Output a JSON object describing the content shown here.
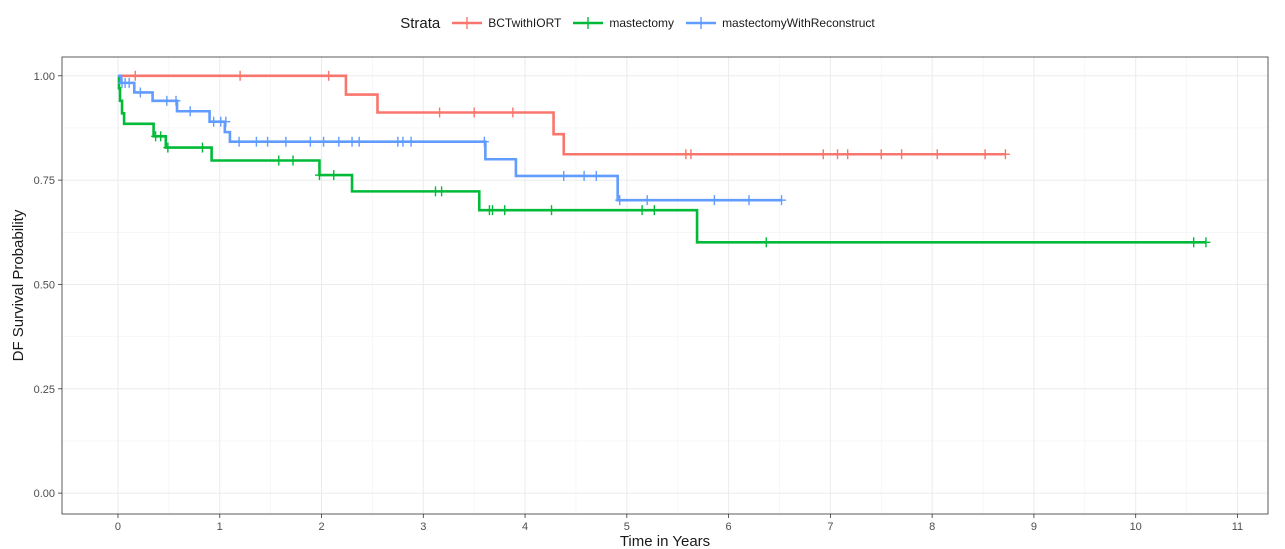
{
  "chart_data": {
    "type": "line",
    "subtype": "kaplan-meier-step",
    "title": "",
    "xlabel": "Time in Years",
    "ylabel": "DF Survival Probability",
    "xlim": [
      -0.55,
      11.3
    ],
    "ylim": [
      -0.05,
      1.045
    ],
    "xticks": [
      0,
      1,
      2,
      3,
      4,
      5,
      6,
      7,
      8,
      9,
      10,
      11
    ],
    "xtick_labels": [
      "0",
      "1",
      "2",
      "3",
      "4",
      "5",
      "6",
      "7",
      "8",
      "9",
      "10",
      "11"
    ],
    "yticks": [
      0,
      0.25,
      0.5,
      0.75,
      1.0
    ],
    "ytick_labels": [
      "0.00",
      "0.25",
      "0.50",
      "0.75",
      "1.00"
    ],
    "grid": true,
    "legend": {
      "title": "Strata",
      "position": "top"
    },
    "series": [
      {
        "name": "BCTwithIORT",
        "color": "#F8766D",
        "steps": [
          [
            0,
            1.0
          ],
          [
            2.24,
            0.955
          ],
          [
            2.55,
            0.912
          ],
          [
            4.28,
            0.86
          ],
          [
            4.38,
            0.812
          ],
          [
            8.72,
            0.812
          ]
        ],
        "censored": [
          [
            0.17,
            1.0
          ],
          [
            1.2,
            1.0
          ],
          [
            2.07,
            1.0
          ],
          [
            3.16,
            0.912
          ],
          [
            3.5,
            0.912
          ],
          [
            3.88,
            0.912
          ],
          [
            5.58,
            0.812
          ],
          [
            5.63,
            0.812
          ],
          [
            6.93,
            0.812
          ],
          [
            7.07,
            0.812
          ],
          [
            7.17,
            0.812
          ],
          [
            7.5,
            0.812
          ],
          [
            7.7,
            0.812
          ],
          [
            8.05,
            0.812
          ],
          [
            8.52,
            0.812
          ],
          [
            8.72,
            0.812
          ]
        ]
      },
      {
        "name": "mastectomy",
        "color": "#00BA38",
        "steps": [
          [
            0,
            1.0
          ],
          [
            0.01,
            0.97
          ],
          [
            0.02,
            0.94
          ],
          [
            0.04,
            0.91
          ],
          [
            0.06,
            0.885
          ],
          [
            0.35,
            0.855
          ],
          [
            0.47,
            0.828
          ],
          [
            0.92,
            0.797
          ],
          [
            1.98,
            0.762
          ],
          [
            2.3,
            0.723
          ],
          [
            3.55,
            0.678
          ],
          [
            5.69,
            0.601
          ],
          [
            10.69,
            0.601
          ]
        ],
        "censored": [
          [
            0.37,
            0.855
          ],
          [
            0.42,
            0.855
          ],
          [
            0.49,
            0.828
          ],
          [
            0.83,
            0.828
          ],
          [
            1.58,
            0.797
          ],
          [
            1.72,
            0.797
          ],
          [
            1.98,
            0.762
          ],
          [
            2.12,
            0.762
          ],
          [
            3.12,
            0.723
          ],
          [
            3.18,
            0.723
          ],
          [
            3.65,
            0.678
          ],
          [
            3.68,
            0.678
          ],
          [
            3.8,
            0.678
          ],
          [
            4.26,
            0.678
          ],
          [
            5.15,
            0.678
          ],
          [
            5.27,
            0.678
          ],
          [
            6.37,
            0.601
          ],
          [
            10.57,
            0.601
          ],
          [
            10.69,
            0.601
          ]
        ]
      },
      {
        "name": "mastectomyWithReconstruct",
        "color": "#619CFF",
        "steps": [
          [
            0,
            1.0
          ],
          [
            0.03,
            0.983
          ],
          [
            0.16,
            0.96
          ],
          [
            0.34,
            0.94
          ],
          [
            0.58,
            0.915
          ],
          [
            0.9,
            0.89
          ],
          [
            1.05,
            0.865
          ],
          [
            1.1,
            0.842
          ],
          [
            3.61,
            0.8
          ],
          [
            3.91,
            0.76
          ],
          [
            4.91,
            0.702
          ],
          [
            6.52,
            0.702
          ]
        ],
        "censored": [
          [
            0.04,
            0.983
          ],
          [
            0.07,
            0.983
          ],
          [
            0.11,
            0.983
          ],
          [
            0.22,
            0.96
          ],
          [
            0.48,
            0.94
          ],
          [
            0.57,
            0.94
          ],
          [
            0.71,
            0.915
          ],
          [
            0.94,
            0.89
          ],
          [
            1.01,
            0.89
          ],
          [
            1.06,
            0.89
          ],
          [
            1.19,
            0.842
          ],
          [
            1.36,
            0.842
          ],
          [
            1.47,
            0.842
          ],
          [
            1.65,
            0.842
          ],
          [
            1.89,
            0.842
          ],
          [
            2.02,
            0.842
          ],
          [
            2.17,
            0.842
          ],
          [
            2.3,
            0.842
          ],
          [
            2.37,
            0.842
          ],
          [
            2.75,
            0.842
          ],
          [
            2.8,
            0.842
          ],
          [
            2.88,
            0.842
          ],
          [
            3.6,
            0.842
          ],
          [
            4.38,
            0.76
          ],
          [
            4.58,
            0.76
          ],
          [
            4.7,
            0.76
          ],
          [
            4.93,
            0.702
          ],
          [
            5.2,
            0.702
          ],
          [
            5.86,
            0.702
          ],
          [
            6.2,
            0.702
          ],
          [
            6.52,
            0.702
          ]
        ]
      }
    ]
  }
}
